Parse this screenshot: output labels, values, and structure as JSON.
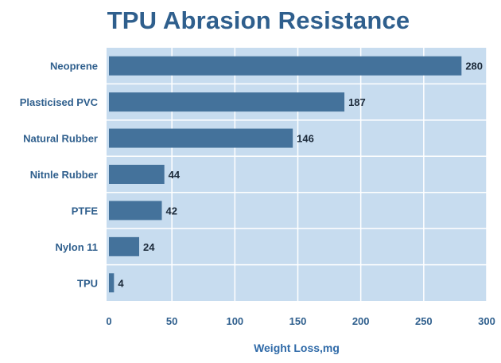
{
  "chart_data": {
    "type": "bar",
    "orientation": "horizontal",
    "title": "TPU Abrasion Resistance",
    "xlabel": "Weight Loss,mg",
    "ylabel": "",
    "categories": [
      "Neoprene",
      "Plasticised PVC",
      "Natural Rubber",
      "Nitnle Rubber",
      "PTFE",
      "Nylon 11",
      "TPU"
    ],
    "values": [
      280,
      187,
      146,
      44,
      42,
      24,
      4
    ],
    "value_labels": [
      "280",
      "187",
      "146",
      "44",
      "42",
      "24",
      "4"
    ],
    "xlim": [
      0,
      300
    ],
    "xticks": [
      "0",
      "50",
      "100",
      "150",
      "200",
      "250",
      "300"
    ],
    "grid": true,
    "legend": "none",
    "colors": {
      "bar": "#44729b",
      "plot_background": "#c7dcef",
      "grid": "#ffffff",
      "title": "#2f5f8d",
      "axis_title": "#2f6aa8"
    }
  }
}
